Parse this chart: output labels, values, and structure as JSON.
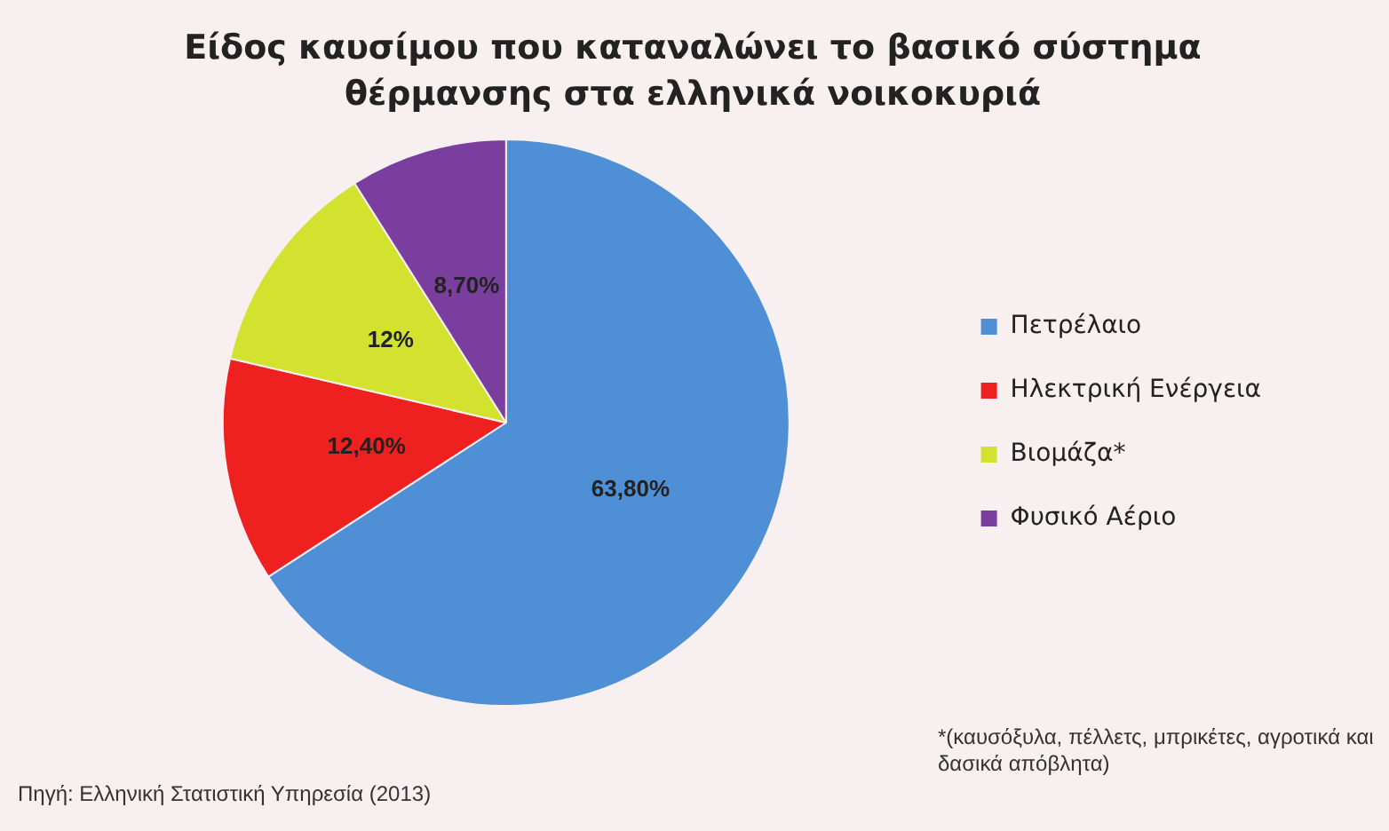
{
  "chart_data": {
    "type": "pie",
    "title": "Είδος καυσίμου που καταναλώνει το βασικό σύστημα θέρμανσης στα ελληνικά νοικοκυριά",
    "categories": [
      "Πετρέλαιο",
      "Ηλεκτρική Ενέργεια",
      "Βιομάζα*",
      "Φυσικό Αέριο"
    ],
    "values": [
      63.8,
      12.4,
      12,
      8.7
    ],
    "value_labels": [
      "63,80%",
      "12,40%",
      "12%",
      "8,70%"
    ],
    "colors": [
      "#4f8fd6",
      "#ee2020",
      "#d2e22e",
      "#7a3f9e"
    ],
    "legend": "right",
    "annotations": [
      "Πηγή: Ελληνική Στατιστική Υπηρεσία (2013)",
      "*(καυσόξυλα, πέλλετς, μπρικέτες, αγροτικά και δασικά απόβλητα)"
    ]
  }
}
